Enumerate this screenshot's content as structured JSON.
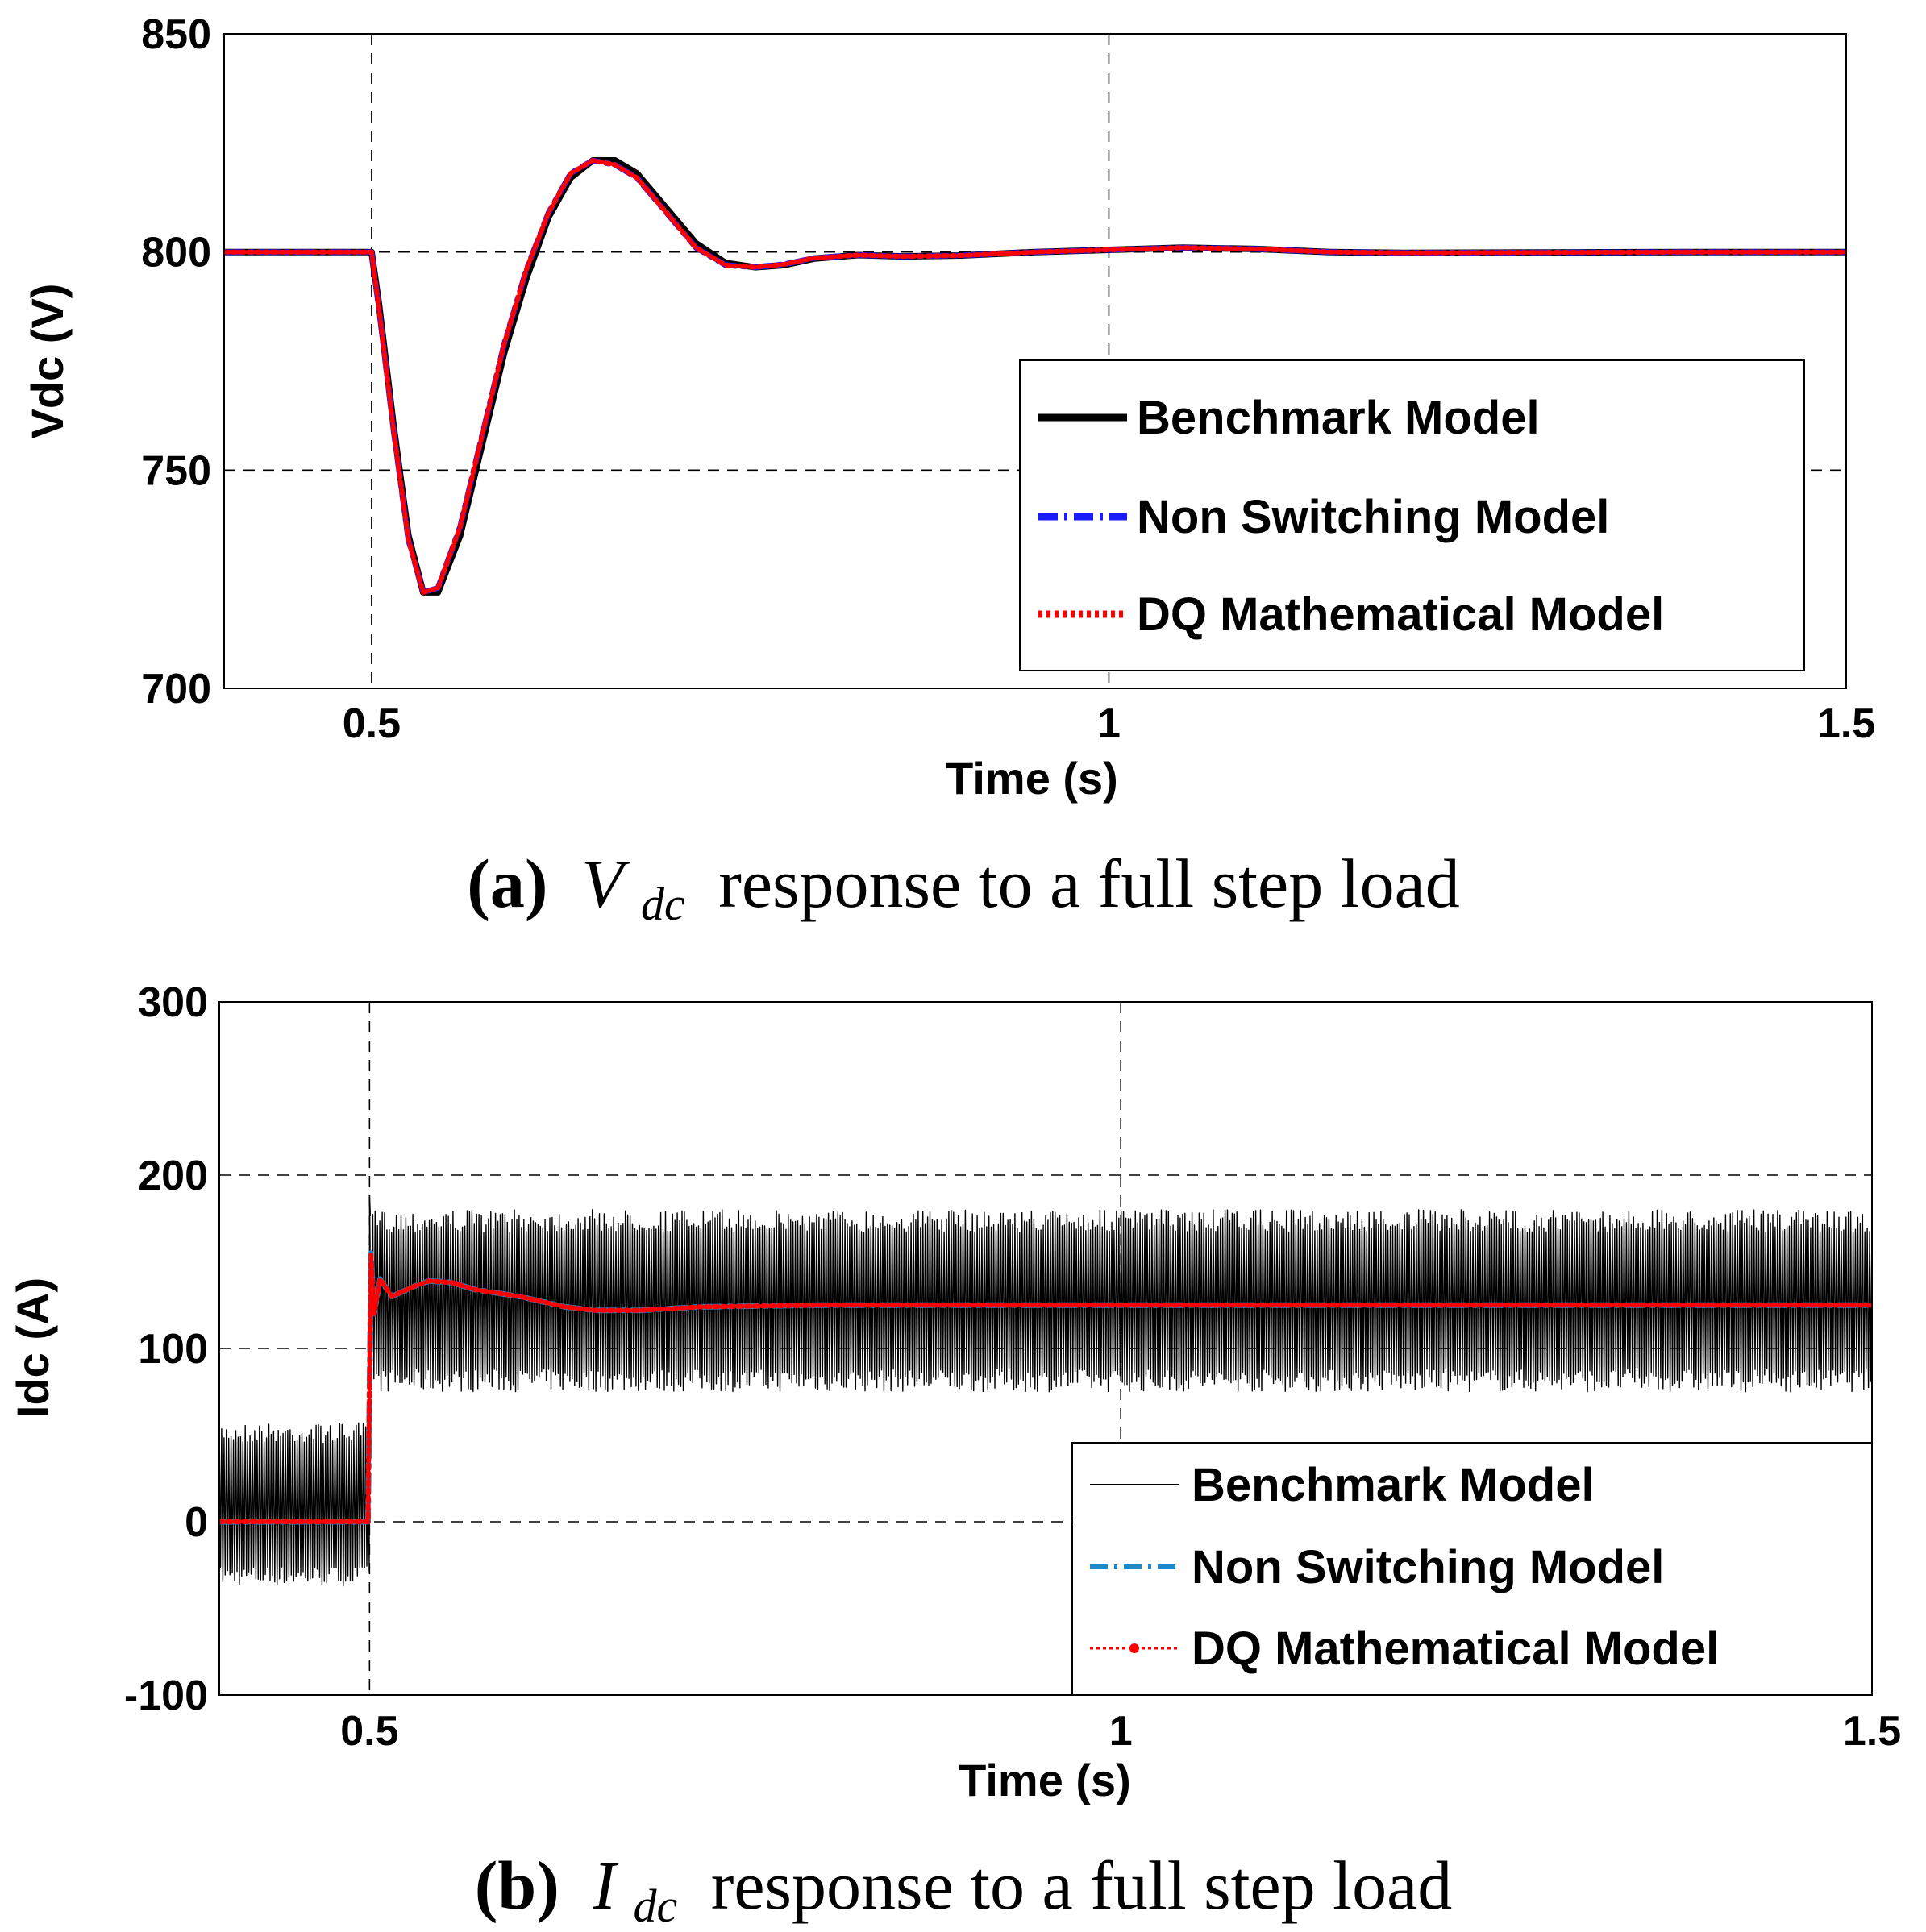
{
  "chart_data": [
    {
      "id": "a",
      "type": "line",
      "title": "",
      "xlabel": "Time (s)",
      "ylabel": "Vdc (V)",
      "xlim": [
        0.4,
        1.5
      ],
      "ylim": [
        700,
        850
      ],
      "xticks": [
        0.5,
        1,
        1.5
      ],
      "xtick_labels": [
        "0.5",
        "1",
        "1.5"
      ],
      "yticks": [
        700,
        750,
        800,
        850
      ],
      "ytick_labels": [
        "700",
        "750",
        "800",
        "850"
      ],
      "grid": true,
      "legend_position": "right",
      "series": [
        {
          "name": "Benchmark Model",
          "color": "#000000",
          "style": "solid",
          "x": [
            0.4,
            0.5,
            0.505,
            0.515,
            0.525,
            0.535,
            0.545,
            0.56,
            0.575,
            0.59,
            0.605,
            0.62,
            0.635,
            0.65,
            0.665,
            0.68,
            0.7,
            0.72,
            0.74,
            0.76,
            0.78,
            0.8,
            0.83,
            0.86,
            0.9,
            0.95,
            1.0,
            1.05,
            1.1,
            1.15,
            1.2,
            1.3,
            1.4,
            1.5
          ],
          "values": [
            800,
            800,
            788,
            760,
            735,
            722,
            722,
            735,
            756,
            777,
            794,
            808,
            817,
            821,
            821,
            818,
            810,
            802,
            797.5,
            796.5,
            797,
            798.5,
            799.3,
            799,
            799.2,
            800,
            800.5,
            801,
            800.7,
            800,
            799.8,
            799.9,
            800,
            800
          ]
        },
        {
          "name": "Non Switching Model",
          "color": "#1a1aff",
          "style": "dashdot",
          "x": [
            0.4,
            0.5,
            0.505,
            0.515,
            0.525,
            0.535,
            0.545,
            0.56,
            0.575,
            0.59,
            0.605,
            0.62,
            0.635,
            0.65,
            0.665,
            0.68,
            0.7,
            0.72,
            0.74,
            0.76,
            0.78,
            0.8,
            0.83,
            0.86,
            0.9,
            0.95,
            1.0,
            1.05,
            1.1,
            1.15,
            1.2,
            1.3,
            1.4,
            1.5
          ],
          "values": [
            800,
            800,
            787,
            759,
            734,
            722,
            723,
            737,
            758,
            779,
            796,
            809,
            818,
            821,
            820,
            817,
            809,
            801,
            797,
            796.5,
            797.2,
            798.6,
            799.3,
            799,
            799.2,
            800,
            800.5,
            801,
            800.7,
            800,
            799.8,
            799.9,
            800,
            800
          ]
        },
        {
          "name": "DQ Mathematical Model",
          "color": "#ff0000",
          "style": "dotted",
          "x": [
            0.4,
            0.5,
            0.505,
            0.515,
            0.525,
            0.535,
            0.545,
            0.56,
            0.575,
            0.59,
            0.605,
            0.62,
            0.635,
            0.65,
            0.665,
            0.68,
            0.7,
            0.72,
            0.74,
            0.76,
            0.78,
            0.8,
            0.83,
            0.86,
            0.9,
            0.95,
            1.0,
            1.05,
            1.1,
            1.15,
            1.2,
            1.3,
            1.4,
            1.5
          ],
          "values": [
            800,
            800,
            787,
            759,
            734,
            722,
            723,
            737,
            758,
            779,
            796,
            809,
            818,
            821,
            820,
            817,
            809,
            801,
            797,
            796.5,
            797.2,
            798.6,
            799.3,
            799,
            799.2,
            800,
            800.5,
            801,
            800.7,
            800,
            799.8,
            799.9,
            800,
            800
          ]
        }
      ]
    },
    {
      "id": "b",
      "type": "line",
      "title": "",
      "xlabel": "Time (s)",
      "ylabel": "Idc (A)",
      "xlim": [
        0.4,
        1.5
      ],
      "ylim": [
        -100,
        300
      ],
      "xticks": [
        0.5,
        1,
        1.5
      ],
      "xtick_labels": [
        "0.5",
        "1",
        "1.5"
      ],
      "yticks": [
        -100,
        0,
        100,
        200,
        300
      ],
      "ytick_labels": [
        "-100",
        "0",
        "100",
        "200",
        "300"
      ],
      "grid": true,
      "legend_position": "bottom-right",
      "series": [
        {
          "name": "Benchmark Model",
          "color": "#000000",
          "style": "thin-solid",
          "ripple": {
            "before_step": {
              "mean": 10,
              "min": -37,
              "max": 57
            },
            "after_step": {
              "mean": 128,
              "min": 75,
              "max": 180
            },
            "peak_at_step": 188
          },
          "x": [
            0.4,
            0.5,
            0.502,
            1.5
          ],
          "values": [
            10,
            10,
            128,
            128
          ]
        },
        {
          "name": "Non Switching Model",
          "color": "#1e88c8",
          "style": "dashdot",
          "x": [
            0.4,
            0.499,
            0.501,
            0.503,
            0.507,
            0.515,
            0.53,
            0.54,
            0.555,
            0.57,
            0.6,
            0.63,
            0.65,
            0.68,
            0.72,
            0.8,
            0.9,
            1.0,
            1.1,
            1.2,
            1.3,
            1.4,
            1.5
          ],
          "values": [
            0,
            0,
            155,
            120,
            140,
            130,
            136,
            139,
            138,
            134,
            130,
            124,
            122,
            122,
            124,
            125,
            125,
            125,
            125,
            125,
            125,
            125,
            125
          ]
        },
        {
          "name": "DQ Mathematical Model",
          "color": "#ff0000",
          "style": "dotted",
          "x": [
            0.4,
            0.499,
            0.501,
            0.503,
            0.507,
            0.515,
            0.53,
            0.54,
            0.555,
            0.57,
            0.6,
            0.63,
            0.65,
            0.68,
            0.72,
            0.8,
            0.9,
            1.0,
            1.1,
            1.2,
            1.3,
            1.4,
            1.5
          ],
          "values": [
            0,
            0,
            155,
            120,
            140,
            130,
            136,
            139,
            138,
            134,
            130,
            124,
            122,
            122,
            124,
            125,
            125,
            125,
            125,
            125,
            125,
            125,
            125
          ]
        }
      ]
    }
  ],
  "captions": {
    "a": {
      "label": "(a)",
      "symbol": "V",
      "subscript": "dc",
      "rest": "response to a full step load"
    },
    "b": {
      "label": "(b)",
      "symbol": "I",
      "subscript": "dc",
      "rest": "response to a full step load"
    }
  }
}
